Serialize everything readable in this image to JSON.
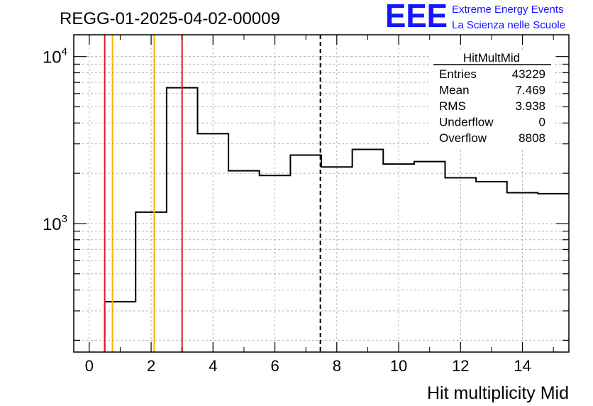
{
  "header": {
    "run_title": "REGG-01-2025-04-02-00009",
    "logo_text": "EEE",
    "org_line1": "Extreme Energy Events",
    "org_line2": "La Scienza nelle Scuole"
  },
  "stats_box": {
    "title": "HitMultMid",
    "rows": [
      {
        "label": "Entries",
        "value": "43229"
      },
      {
        "label": "Mean",
        "value": "7.469"
      },
      {
        "label": "RMS",
        "value": "3.938"
      },
      {
        "label": "Underflow",
        "value": "0"
      },
      {
        "label": "Overflow",
        "value": "8808"
      }
    ]
  },
  "colors": {
    "histogram": "#000000",
    "red_line": "#e31a1c",
    "orange_line": "#f5b800",
    "grid": "#b5b5b5",
    "logo_blue": "#1414ff"
  },
  "chart_data": {
    "type": "histogram",
    "title": "REGG-01-2025-04-02-00009",
    "xlabel": "Hit multiplicity Mid",
    "ylabel": "",
    "y_scale": "log",
    "xlim": [
      -0.5,
      15.5
    ],
    "ylim": [
      170,
      13500
    ],
    "grid": true,
    "bin_edges": [
      0.5,
      1.5,
      2.5,
      3.5,
      4.5,
      5.5,
      6.5,
      7.5,
      8.5,
      9.5,
      10.5,
      11.5,
      12.5,
      13.5,
      14.5,
      15.5
    ],
    "values": [
      340,
      1170,
      6500,
      3450,
      2070,
      1940,
      2570,
      2180,
      2780,
      2270,
      2350,
      1880,
      1780,
      1530,
      1510
    ],
    "x_ticks": [
      {
        "value": 0,
        "label": "0"
      },
      {
        "value": 2,
        "label": "2"
      },
      {
        "value": 4,
        "label": "4"
      },
      {
        "value": 6,
        "label": "6"
      },
      {
        "value": 8,
        "label": "8"
      },
      {
        "value": 10,
        "label": "10"
      },
      {
        "value": 12,
        "label": "12"
      },
      {
        "value": 14,
        "label": "14"
      }
    ],
    "y_ticks": [
      {
        "value": 1000,
        "base": "10",
        "exp": "3"
      },
      {
        "value": 10000,
        "base": "10",
        "exp": "4"
      }
    ],
    "vertical_lines": [
      {
        "x": 0.5,
        "color": "red"
      },
      {
        "x": 0.75,
        "color": "orange"
      },
      {
        "x": 2.1,
        "color": "orange"
      },
      {
        "x": 3.0,
        "color": "red"
      },
      {
        "x": 7.469,
        "color": "black",
        "style": "dashed"
      }
    ]
  }
}
